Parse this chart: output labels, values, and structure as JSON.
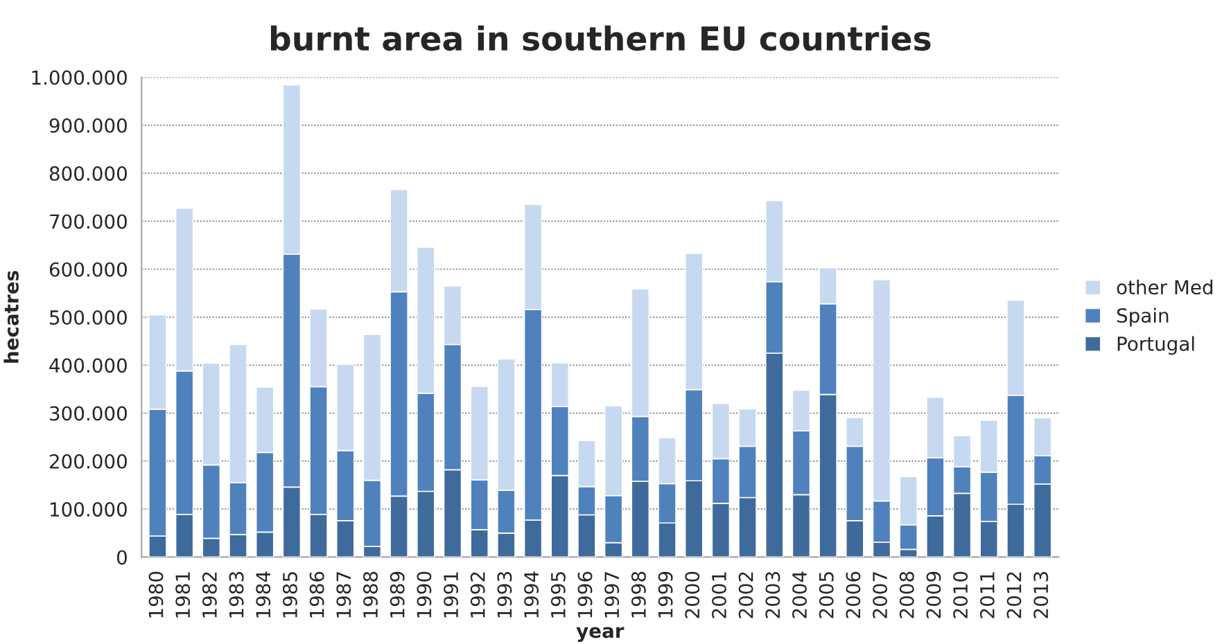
{
  "chart_data": {
    "type": "bar",
    "stacked": true,
    "title": "burnt area in southern EU countries",
    "xlabel": "year",
    "ylabel": "hecatres",
    "categories": [
      "1980",
      "1981",
      "1982",
      "1983",
      "1984",
      "1985",
      "1986",
      "1987",
      "1988",
      "1989",
      "1990",
      "1991",
      "1992",
      "1993",
      "1994",
      "1995",
      "1996",
      "1997",
      "1998",
      "1999",
      "2000",
      "2001",
      "2002",
      "2003",
      "2004",
      "2005",
      "2006",
      "2007",
      "2008",
      "2009",
      "2010",
      "2011",
      "2012",
      "2013"
    ],
    "series": [
      {
        "name": "Portugal",
        "color": "#3f6a9c",
        "values": [
          44000,
          89000,
          39000,
          47000,
          52000,
          146000,
          89000,
          76000,
          22000,
          127000,
          137000,
          182000,
          57000,
          50000,
          77000,
          170000,
          88000,
          30000,
          158000,
          71000,
          159000,
          112000,
          124000,
          425000,
          130000,
          339000,
          76000,
          31000,
          16000,
          86000,
          133000,
          74000,
          110000,
          152000
        ]
      },
      {
        "name": "Spain",
        "color": "#4f81bd",
        "values": [
          264000,
          299000,
          153000,
          108000,
          166000,
          485000,
          266000,
          146000,
          138000,
          426000,
          204000,
          261000,
          104000,
          89000,
          439000,
          144000,
          59000,
          98000,
          135000,
          82000,
          190000,
          93000,
          107000,
          149000,
          133000,
          189000,
          155000,
          86000,
          51000,
          121000,
          55000,
          103000,
          227000,
          59000
        ]
      },
      {
        "name": "other Med",
        "color": "#c6d9f0",
        "values": [
          197000,
          339000,
          212000,
          288000,
          136000,
          353000,
          162000,
          180000,
          304000,
          213000,
          305000,
          122000,
          195000,
          274000,
          219000,
          91000,
          96000,
          187000,
          266000,
          96000,
          284000,
          115000,
          78000,
          169000,
          85000,
          75000,
          60000,
          461000,
          101000,
          126000,
          65000,
          108000,
          198000,
          79000
        ]
      }
    ],
    "ylim": [
      0,
      1000000
    ],
    "yticks": [
      0,
      {
        "value": 100000,
        "label": "100.000"
      },
      {
        "value": 200000,
        "label": "200.000"
      },
      {
        "value": 300000,
        "label": "300.000"
      },
      {
        "value": 400000,
        "label": "400.000"
      },
      {
        "value": 500000,
        "label": "500.000"
      },
      {
        "value": 600000,
        "label": "600.000"
      },
      {
        "value": 700000,
        "label": "700.000"
      },
      {
        "value": 800000,
        "label": "800.000"
      },
      {
        "value": 900000,
        "label": "900.000"
      },
      {
        "value": 1000000,
        "label": "1.000.000"
      }
    ],
    "grid": "y",
    "legend": "right"
  }
}
